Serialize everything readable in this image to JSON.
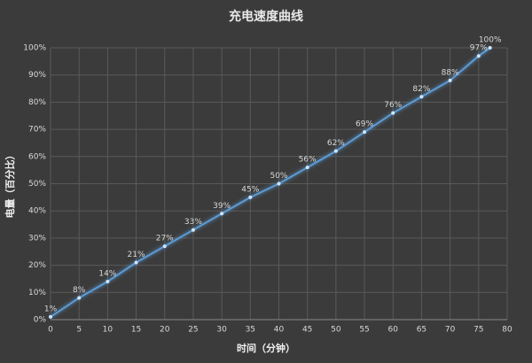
{
  "chart_data": {
    "type": "line",
    "title": "充电速度曲线",
    "x_label": "时间（分钟）",
    "y_label": "电量（百分比）",
    "x": [
      0,
      5,
      10,
      15,
      20,
      25,
      30,
      35,
      40,
      45,
      50,
      55,
      60,
      65,
      70,
      75,
      77
    ],
    "series": [
      {
        "name": "电量",
        "color": "#5b9bd5",
        "values": [
          1,
          8,
          14,
          21,
          27,
          33,
          39,
          45,
          50,
          56,
          62,
          69,
          76,
          82,
          88,
          97,
          100
        ],
        "value_labels": [
          "1%",
          "8%",
          "14%",
          "21%",
          "27%",
          "33%",
          "39%",
          "45%",
          "50%",
          "56%",
          "62%",
          "69%",
          "76%",
          "82%",
          "88%",
          "97%",
          "100%"
        ]
      }
    ],
    "xlim": [
      0,
      80
    ],
    "xticks": [
      0,
      5,
      10,
      15,
      20,
      25,
      30,
      35,
      40,
      45,
      50,
      55,
      60,
      65,
      70,
      75,
      80
    ],
    "ylim": [
      0,
      100
    ],
    "yticks": [
      {
        "value": 0,
        "label": "0%"
      },
      {
        "value": 10,
        "label": "10%"
      },
      {
        "value": 20,
        "label": "20%"
      },
      {
        "value": 30,
        "label": "30%"
      },
      {
        "value": 40,
        "label": "40%"
      },
      {
        "value": 50,
        "label": "50%"
      },
      {
        "value": 60,
        "label": "60%"
      },
      {
        "value": 70,
        "label": "70%"
      },
      {
        "value": 80,
        "label": "80%"
      },
      {
        "value": 90,
        "label": "90%"
      },
      {
        "value": 100,
        "label": "100%"
      }
    ],
    "grid": true
  }
}
